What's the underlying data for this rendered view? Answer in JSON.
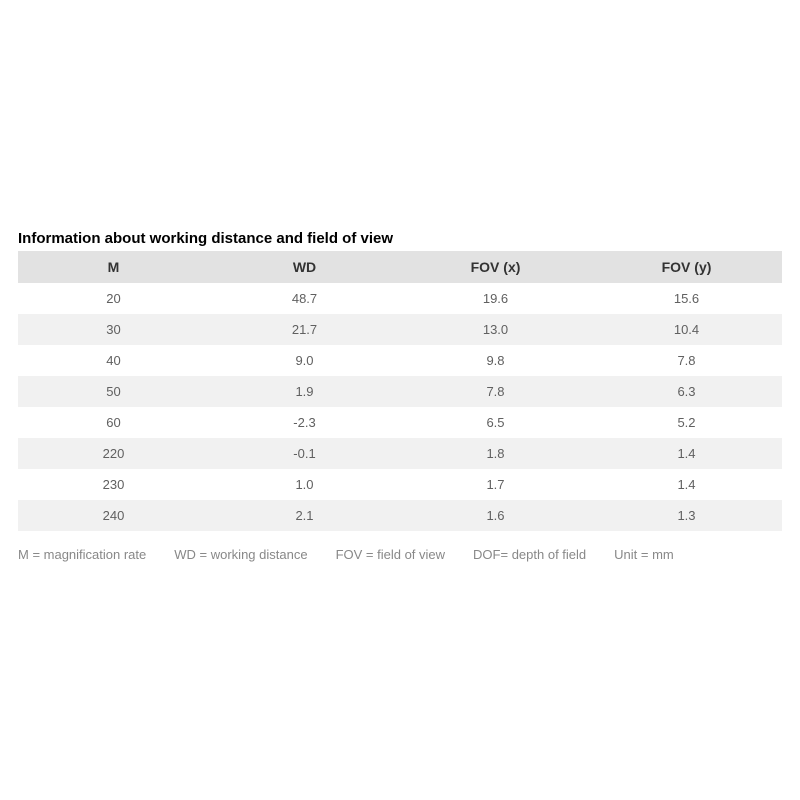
{
  "title": "Information about working distance and field of view",
  "table": {
    "columns": [
      "M",
      "WD",
      "FOV (x)",
      "FOV (y)"
    ],
    "rows": [
      [
        "20",
        "48.7",
        "19.6",
        "15.6"
      ],
      [
        "30",
        "21.7",
        "13.0",
        "10.4"
      ],
      [
        "40",
        "9.0",
        "9.8",
        "7.8"
      ],
      [
        "50",
        "1.9",
        "7.8",
        "6.3"
      ],
      [
        "60",
        "-2.3",
        "6.5",
        "5.2"
      ],
      [
        "220",
        "-0.1",
        "1.8",
        "1.4"
      ],
      [
        "230",
        "1.0",
        "1.7",
        "1.4"
      ],
      [
        "240",
        "2.1",
        "1.6",
        "1.3"
      ]
    ],
    "header_bg": "#e2e2e2",
    "row_even_bg": "#f1f1f1",
    "row_odd_bg": "#ffffff",
    "text_color": "#606060",
    "header_text_color": "#333333",
    "header_fontsize": 14,
    "cell_fontsize": 13
  },
  "legend": [
    "M = magnification rate",
    "WD = working distance",
    "FOV = field of view",
    "DOF= depth of field",
    "Unit = mm"
  ],
  "colors": {
    "background": "#ffffff",
    "title": "#000000",
    "legend_text": "#888888"
  },
  "typography": {
    "title_fontsize": 15,
    "title_fontweight": "bold",
    "legend_fontsize": 13,
    "font_family": "Arial"
  }
}
